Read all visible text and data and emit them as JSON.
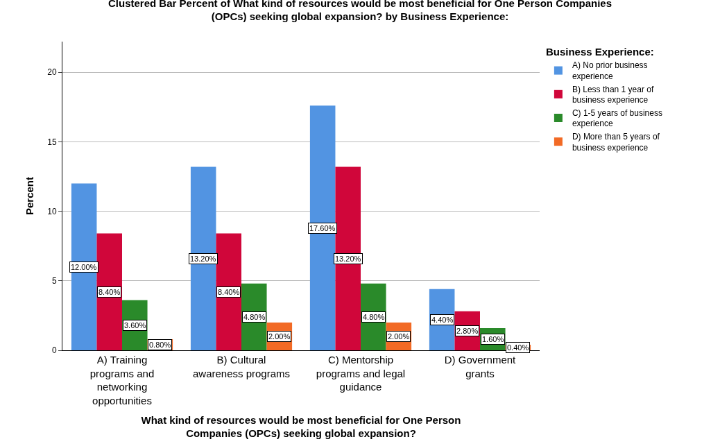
{
  "chart_data": {
    "type": "bar",
    "title": "Clustered Bar Percent of What kind of resources would be most beneficial for One Person Companies (OPCs) seeking global expansion? by Business Experience:",
    "xlabel": "What kind of resources would be most beneficial for One Person Companies (OPCs) seeking global expansion?",
    "ylabel": "Percent",
    "legend_title": "Business Experience:",
    "categories": [
      "A) Training programs and networking opportunities",
      "B) Cultural awareness programs",
      "C) Mentorship programs and legal guidance",
      "D) Government grants"
    ],
    "series": [
      {
        "name": "A) No prior business experience",
        "color": "#5294e2",
        "values": [
          12.0,
          13.2,
          17.6,
          4.4
        ],
        "value_labels": [
          "12.00%",
          "13.20%",
          "17.60%",
          "4.40%"
        ]
      },
      {
        "name": "B) Less than 1 year of business experience",
        "color": "#d0063a",
        "values": [
          8.4,
          8.4,
          13.2,
          2.8
        ],
        "value_labels": [
          "8.40%",
          "8.40%",
          "13.20%",
          "2.80%"
        ]
      },
      {
        "name": "C) 1-5 years of business experience",
        "color": "#2a8a2a",
        "values": [
          3.6,
          4.8,
          4.8,
          1.6
        ],
        "value_labels": [
          "3.60%",
          "4.80%",
          "4.80%",
          "1.60%"
        ]
      },
      {
        "name": "D) More than 5 years of business experience",
        "color": "#f26a25",
        "values": [
          0.8,
          2.0,
          2.0,
          0.4
        ],
        "value_labels": [
          "0.80%",
          "2.00%",
          "2.00%",
          "0.40%"
        ]
      }
    ],
    "ylim": [
      0,
      22.2
    ],
    "yticks": [
      0,
      5,
      10,
      15,
      20
    ],
    "grid": "y",
    "legend": "top right"
  }
}
